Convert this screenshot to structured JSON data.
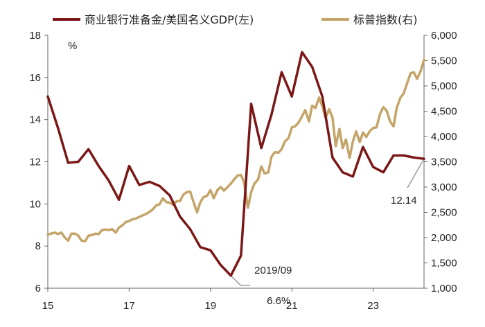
{
  "chart_data": {
    "type": "line",
    "title": "",
    "unit_label": "%",
    "xlabel": "",
    "ylabel_left": "",
    "ylabel_right": "",
    "x_tick_labels": [
      "15",
      "17",
      "19",
      "21",
      "23"
    ],
    "x_tick_values": [
      2015,
      2017,
      2019,
      2021,
      2023
    ],
    "xlim": [
      2015,
      2024.25
    ],
    "ylim_left": [
      6,
      18
    ],
    "y_left_ticks": [
      6,
      8,
      10,
      12,
      14,
      16,
      18
    ],
    "y_left_tick_labels": [
      "6",
      "8",
      "10",
      "12",
      "14",
      "16",
      "18"
    ],
    "ylim_right": [
      1000,
      6000
    ],
    "y_right_ticks": [
      1000,
      1500,
      2000,
      2500,
      3000,
      3500,
      4000,
      4500,
      5000,
      5500,
      6000
    ],
    "y_right_tick_labels": [
      "1,000",
      "1,500",
      "2,000",
      "2,500",
      "3,000",
      "3,500",
      "4,000",
      "4,500",
      "5,000",
      "5,500",
      "6,000"
    ],
    "grid": false,
    "legend_position": "top",
    "colors": {
      "reserves": "#7b1717",
      "sp500": "#c4a468",
      "axis": "#666666",
      "leader": "#999999"
    },
    "series": [
      {
        "name": "商业银行准备金/美国名义GDP(左)",
        "axis": "left",
        "x": [
          2015.0,
          2015.25,
          2015.5,
          2015.75,
          2016.0,
          2016.25,
          2016.5,
          2016.75,
          2017.0,
          2017.25,
          2017.5,
          2017.75,
          2018.0,
          2018.25,
          2018.5,
          2018.75,
          2019.0,
          2019.25,
          2019.5,
          2019.75,
          2020.0,
          2020.25,
          2020.5,
          2020.75,
          2021.0,
          2021.25,
          2021.5,
          2021.75,
          2022.0,
          2022.25,
          2022.5,
          2022.75,
          2023.0,
          2023.25,
          2023.5,
          2023.75,
          2024.0,
          2024.25
        ],
        "values": [
          15.1,
          13.6,
          11.95,
          12.0,
          12.6,
          11.8,
          11.1,
          10.2,
          11.8,
          10.9,
          11.05,
          10.85,
          10.4,
          9.4,
          8.8,
          7.95,
          7.8,
          7.1,
          6.6,
          7.55,
          14.75,
          12.65,
          14.25,
          16.25,
          15.1,
          17.2,
          16.5,
          15.1,
          12.2,
          11.5,
          11.3,
          12.7,
          11.75,
          11.5,
          12.3,
          12.3,
          12.2,
          12.14
        ]
      },
      {
        "name": "标普指数(右)",
        "axis": "right",
        "x": [
          2015.0,
          2015.08,
          2015.17,
          2015.25,
          2015.33,
          2015.42,
          2015.5,
          2015.58,
          2015.67,
          2015.75,
          2015.83,
          2015.92,
          2016.0,
          2016.08,
          2016.17,
          2016.25,
          2016.33,
          2016.42,
          2016.5,
          2016.58,
          2016.67,
          2016.75,
          2016.83,
          2016.92,
          2017.0,
          2017.08,
          2017.17,
          2017.25,
          2017.33,
          2017.42,
          2017.5,
          2017.58,
          2017.67,
          2017.75,
          2017.83,
          2017.92,
          2018.0,
          2018.08,
          2018.17,
          2018.25,
          2018.33,
          2018.42,
          2018.5,
          2018.58,
          2018.67,
          2018.75,
          2018.83,
          2018.92,
          2019.0,
          2019.08,
          2019.17,
          2019.25,
          2019.33,
          2019.42,
          2019.5,
          2019.58,
          2019.67,
          2019.75,
          2019.83,
          2019.92,
          2020.0,
          2020.08,
          2020.17,
          2020.25,
          2020.33,
          2020.42,
          2020.5,
          2020.58,
          2020.67,
          2020.75,
          2020.83,
          2020.92,
          2021.0,
          2021.08,
          2021.17,
          2021.25,
          2021.33,
          2021.42,
          2021.5,
          2021.58,
          2021.67,
          2021.75,
          2021.83,
          2021.92,
          2022.0,
          2022.08,
          2022.17,
          2022.25,
          2022.33,
          2022.42,
          2022.5,
          2022.58,
          2022.67,
          2022.75,
          2022.83,
          2022.92,
          2023.0,
          2023.08,
          2023.17,
          2023.25,
          2023.33,
          2023.42,
          2023.5,
          2023.58,
          2023.67,
          2023.75,
          2023.83,
          2023.92,
          2024.0,
          2024.08,
          2024.17,
          2024.25
        ],
        "values": [
          2060,
          2080,
          2100,
          2070,
          2100,
          2000,
          1940,
          2080,
          2080,
          2040,
          1940,
          1930,
          2040,
          2050,
          2080,
          2070,
          2150,
          2160,
          2150,
          2170,
          2100,
          2200,
          2240,
          2310,
          2330,
          2360,
          2380,
          2410,
          2440,
          2470,
          2510,
          2560,
          2640,
          2660,
          2780,
          2700,
          2690,
          2650,
          2720,
          2720,
          2850,
          2900,
          2910,
          2710,
          2500,
          2700,
          2800,
          2830,
          2940,
          2780,
          2940,
          3000,
          2930,
          3000,
          3070,
          3150,
          3230,
          3240,
          3080,
          2590,
          2900,
          3070,
          3150,
          3410,
          3270,
          3290,
          3600,
          3690,
          3680,
          3750,
          3900,
          3970,
          4180,
          4200,
          4280,
          4400,
          4520,
          4300,
          4610,
          4560,
          4770,
          4600,
          4370,
          4540,
          4370,
          3810,
          4150,
          3770,
          3940,
          3580,
          3900,
          4100,
          3890,
          4080,
          3990,
          4110,
          4170,
          4180,
          4450,
          4580,
          4510,
          4290,
          4200,
          4570,
          4770,
          4850,
          5040,
          5250,
          5270,
          5140,
          5300,
          5520
        ]
      }
    ],
    "annotations": [
      {
        "text": "2019/09",
        "x": 2019.5,
        "y": 6.6,
        "axis": "left"
      },
      {
        "text": "6.6%"
      },
      {
        "text": "12.14",
        "x": 2024.25,
        "y": 12.14,
        "axis": "left"
      }
    ]
  }
}
